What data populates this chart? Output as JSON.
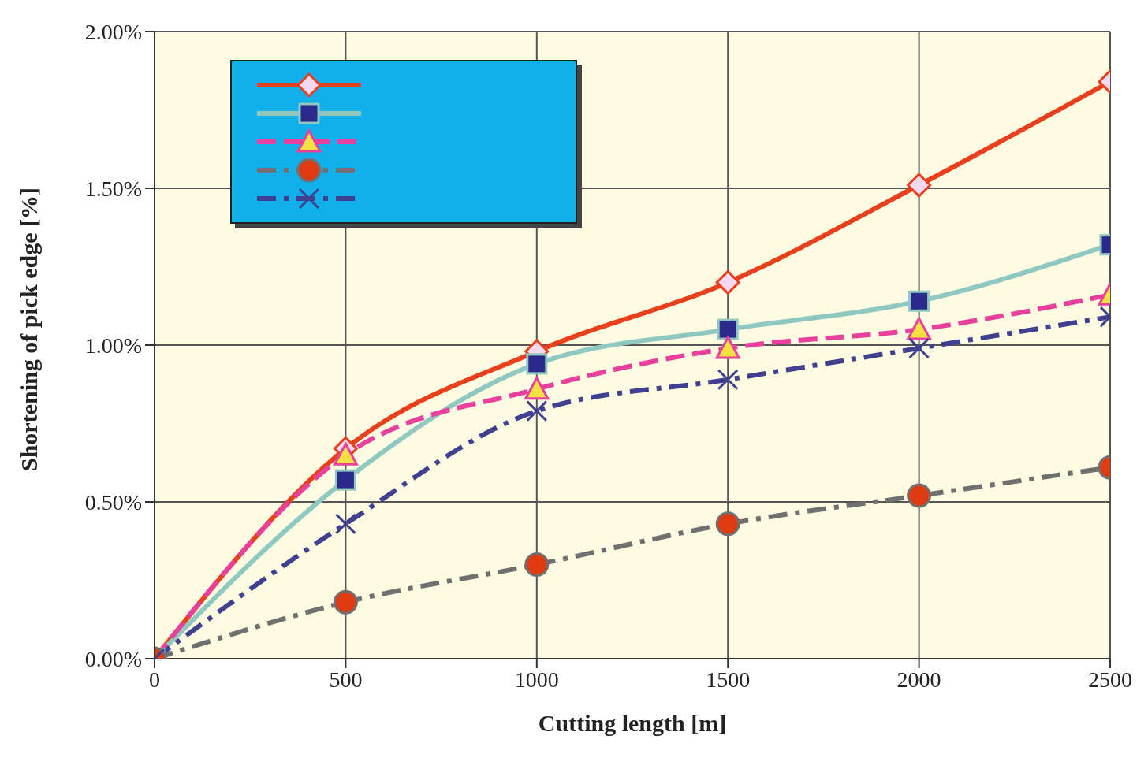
{
  "chart_data": {
    "type": "line",
    "xlabel": "Cutting length [m]",
    "ylabel": "Shortening of pick edge  [%]",
    "x": [
      0,
      500,
      1000,
      1500,
      2000,
      2500
    ],
    "xlim": [
      0,
      2500
    ],
    "xticks": [
      0,
      500,
      1000,
      1500,
      2000,
      2500
    ],
    "ylim": [
      0,
      2
    ],
    "yticks": [
      {
        "value": 0,
        "label": "0.00%"
      },
      {
        "value": 0.5,
        "label": "0.50%"
      },
      {
        "value": 1,
        "label": "1.00%"
      },
      {
        "value": 1.5,
        "label": "1.50%"
      },
      {
        "value": 2,
        "label": "2.00%"
      }
    ],
    "grid": true,
    "series": [
      {
        "color": "#e8401c",
        "marker": "diamond",
        "line_style": "solid",
        "values": [
          0,
          0.67,
          0.98,
          1.2,
          1.51,
          1.84
        ]
      },
      {
        "color": "#8ec8c0",
        "marker": "square",
        "line_style": "solid",
        "values": [
          0,
          0.57,
          0.94,
          1.05,
          1.14,
          1.32
        ]
      },
      {
        "color": "#e8409c",
        "marker": "triangle",
        "line_style": "dashed",
        "values": [
          0,
          0.65,
          0.86,
          0.99,
          1.05,
          1.16
        ]
      },
      {
        "color": "#707070",
        "marker": "circle",
        "line_style": "dashdot",
        "values": [
          0,
          0.18,
          0.3,
          0.43,
          0.52,
          0.61
        ]
      },
      {
        "color": "#404090",
        "marker": "cross",
        "line_style": "dashdot",
        "values": [
          0,
          0.43,
          0.79,
          0.89,
          0.99,
          1.09
        ]
      }
    ]
  }
}
